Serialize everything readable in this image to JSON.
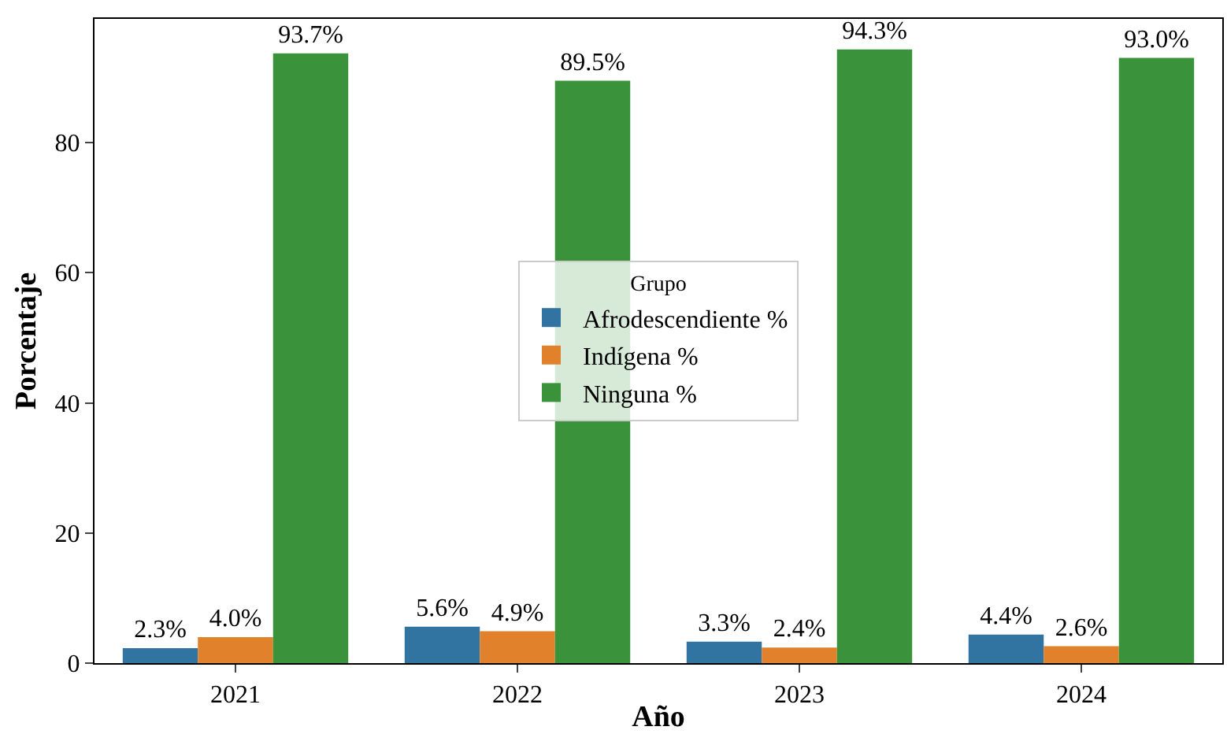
{
  "chart_data": {
    "type": "bar",
    "xlabel": "Año",
    "ylabel": "Porcentaje",
    "legend_title": "Grupo",
    "legend": "center",
    "grid": false,
    "categories": [
      "2021",
      "2022",
      "2023",
      "2024"
    ],
    "ylim": [
      0,
      99
    ],
    "yticks": [
      0,
      20,
      40,
      60,
      80
    ],
    "series": [
      {
        "name": "Afrodescendiente %",
        "color": "#3274a1",
        "values": [
          2.3,
          5.6,
          3.3,
          4.4
        ],
        "value_labels": [
          "2.3%",
          "5.6%",
          "3.3%",
          "4.4%"
        ]
      },
      {
        "name": "Indígena %",
        "color": "#e1812c",
        "values": [
          4.0,
          4.9,
          2.4,
          2.6
        ],
        "value_labels": [
          "4.0%",
          "4.9%",
          "2.4%",
          "2.6%"
        ]
      },
      {
        "name": "Ninguna %",
        "color": "#3a923a",
        "values": [
          93.7,
          89.5,
          94.3,
          93.0
        ],
        "value_labels": [
          "93.7%",
          "89.5%",
          "94.3%",
          "93.0%"
        ]
      }
    ]
  }
}
